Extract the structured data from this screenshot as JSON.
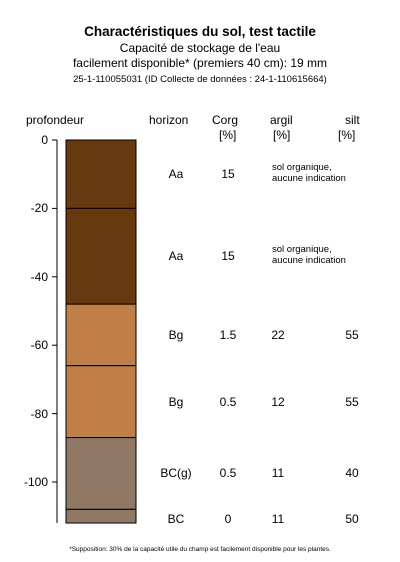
{
  "header": {
    "title": "Charactéristiques du sol, test tactile",
    "subtitle_line1": "Capacité de stockage de l'eau",
    "subtitle_line2": "facilement disponible* (premiers 40 cm): 19 mm",
    "ids": "25-1-110055031 (ID Collecte de données : 24-1-110615664)"
  },
  "columns": {
    "depth": "profondeur",
    "horizon": "horizon",
    "corg": "Corg",
    "corg_unit": "[%]",
    "clay": "argil",
    "clay_unit": "[%]",
    "silt": "silt",
    "silt_unit": "[%]"
  },
  "depth_axis": {
    "ticks": [
      "0",
      "-20",
      "-40",
      "-60",
      "-80",
      "-100"
    ],
    "range": [
      0,
      -112
    ]
  },
  "layers": [
    {
      "top": 0,
      "bottom": -20,
      "color": "#67390f",
      "horizon": "Aa",
      "corg": "15",
      "clay": "sol organique,\naucune indication",
      "silt": ""
    },
    {
      "top": -20,
      "bottom": -48,
      "color": "#67390f",
      "horizon": "Aa",
      "corg": "15",
      "clay": "sol organique,\naucune indication",
      "silt": ""
    },
    {
      "top": -48,
      "bottom": -66,
      "color": "#c17f48",
      "horizon": "Bg",
      "corg": "1.5",
      "clay": "22",
      "silt": "55"
    },
    {
      "top": -66,
      "bottom": -87,
      "color": "#c17f48",
      "horizon": "Bg",
      "corg": "0.5",
      "clay": "12",
      "silt": "55"
    },
    {
      "top": -87,
      "bottom": -108,
      "color": "#8f7864",
      "horizon": "BC(g)",
      "corg": "0.5",
      "clay": "11",
      "silt": "40"
    },
    {
      "top": -108,
      "bottom": -112,
      "color": "#8f7864",
      "horizon": "BC",
      "corg": "0",
      "clay": "11",
      "silt": "50"
    }
  ],
  "footnote": "*Supposition: 30% de la capacité utile du champ est facilement disponible pour les plantes."
}
